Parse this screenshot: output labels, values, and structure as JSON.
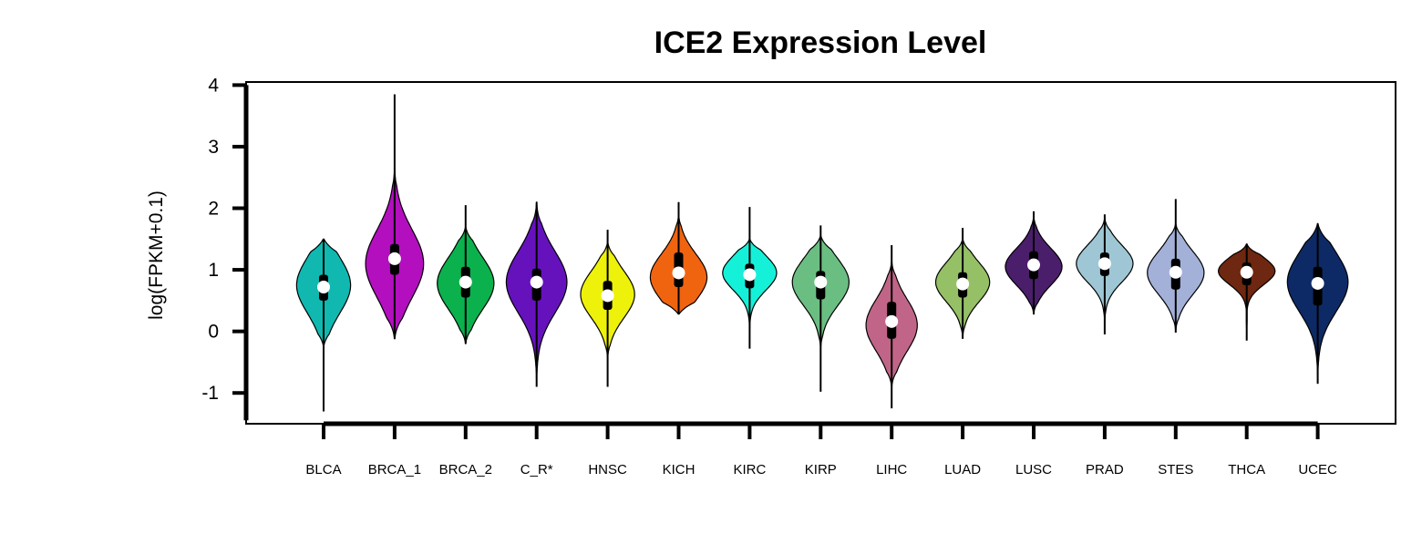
{
  "chart_data": {
    "type": "violin",
    "title": "ICE2 Expression Level",
    "xlabel": "",
    "ylabel": "log(FPKM+0.1)",
    "ylim": [
      -1.5,
      4.05
    ],
    "yticks": [
      -1,
      0,
      1,
      2,
      3,
      4
    ],
    "grid": false,
    "legend": "none",
    "categories": [
      "BLCA",
      "BRCA_1",
      "BRCA_2",
      "C_R*",
      "HNSC",
      "KICH",
      "KIRC",
      "KIRP",
      "LIHC",
      "LUAD",
      "LUSC",
      "PRAD",
      "STES",
      "THCA",
      "UCEC"
    ],
    "series": [
      {
        "category": "BLCA",
        "color": "#10b8b0",
        "min": -1.3,
        "max": 1.5,
        "q1": 0.5,
        "median": 0.72,
        "q3": 0.92,
        "lo": -0.25,
        "hi": 1.5,
        "peak": 0.75,
        "spread": 0.45,
        "width": 0.4
      },
      {
        "category": "BRCA_1",
        "color": "#b30fbf",
        "min": -0.12,
        "max": 3.85,
        "q1": 0.92,
        "median": 1.18,
        "q3": 1.42,
        "lo": -0.12,
        "hi": 2.7,
        "peak": 1.1,
        "spread": 0.55,
        "width": 0.43
      },
      {
        "category": "BRCA_2",
        "color": "#0bb14d",
        "min": -0.2,
        "max": 2.05,
        "q1": 0.55,
        "median": 0.8,
        "q3": 1.05,
        "lo": -0.2,
        "hi": 1.7,
        "peak": 0.78,
        "spread": 0.42,
        "width": 0.42
      },
      {
        "category": "C_R*",
        "color": "#6512bd",
        "min": -0.9,
        "max": 2.1,
        "q1": 0.5,
        "median": 0.8,
        "q3": 1.02,
        "lo": -0.9,
        "hi": 2.1,
        "peak": 0.8,
        "spread": 0.5,
        "width": 0.45
      },
      {
        "category": "HNSC",
        "color": "#eef10a",
        "min": -0.9,
        "max": 1.65,
        "q1": 0.35,
        "median": 0.58,
        "q3": 0.82,
        "lo": -0.45,
        "hi": 1.45,
        "peak": 0.6,
        "spread": 0.38,
        "width": 0.4
      },
      {
        "category": "KICH",
        "color": "#f06410",
        "min": 0.28,
        "max": 2.1,
        "q1": 0.72,
        "median": 0.95,
        "q3": 1.28,
        "lo": 0.28,
        "hi": 1.9,
        "peak": 0.88,
        "spread": 0.38,
        "width": 0.42
      },
      {
        "category": "KIRC",
        "color": "#15f1d8",
        "min": -0.28,
        "max": 2.02,
        "q1": 0.7,
        "median": 0.92,
        "q3": 1.1,
        "lo": 0.0,
        "hi": 1.5,
        "peak": 0.95,
        "spread": 0.28,
        "width": 0.4
      },
      {
        "category": "KIRP",
        "color": "#6bbe82",
        "min": -0.98,
        "max": 1.72,
        "q1": 0.52,
        "median": 0.8,
        "q3": 0.98,
        "lo": -0.3,
        "hi": 1.55,
        "peak": 0.8,
        "spread": 0.38,
        "width": 0.42
      },
      {
        "category": "LIHC",
        "color": "#c06587",
        "min": -1.25,
        "max": 1.4,
        "q1": -0.12,
        "median": 0.16,
        "q3": 0.48,
        "lo": -0.9,
        "hi": 1.15,
        "peak": 0.1,
        "spread": 0.42,
        "width": 0.38
      },
      {
        "category": "LUAD",
        "color": "#95c066",
        "min": -0.12,
        "max": 1.68,
        "q1": 0.55,
        "median": 0.77,
        "q3": 0.96,
        "lo": -0.12,
        "hi": 1.5,
        "peak": 0.8,
        "spread": 0.32,
        "width": 0.4
      },
      {
        "category": "LUSC",
        "color": "#4a1e6a",
        "min": 0.28,
        "max": 1.95,
        "q1": 0.85,
        "median": 1.08,
        "q3": 1.3,
        "lo": 0.28,
        "hi": 1.9,
        "peak": 1.05,
        "spread": 0.3,
        "width": 0.42
      },
      {
        "category": "PRAD",
        "color": "#9fc6d4",
        "min": -0.05,
        "max": 1.9,
        "q1": 0.9,
        "median": 1.1,
        "q3": 1.28,
        "lo": 0.1,
        "hi": 1.85,
        "peak": 1.1,
        "spread": 0.3,
        "width": 0.42
      },
      {
        "category": "STES",
        "color": "#a3b1d8",
        "min": -0.02,
        "max": 2.15,
        "q1": 0.68,
        "median": 0.96,
        "q3": 1.18,
        "lo": 0.0,
        "hi": 1.75,
        "peak": 0.95,
        "spread": 0.35,
        "width": 0.42
      },
      {
        "category": "THCA",
        "color": "#6e2710",
        "min": -0.15,
        "max": 1.42,
        "q1": 0.75,
        "median": 0.96,
        "q3": 1.12,
        "lo": 0.0,
        "hi": 1.42,
        "peak": 0.98,
        "spread": 0.22,
        "width": 0.42
      },
      {
        "category": "UCEC",
        "color": "#0d2a66",
        "min": -0.85,
        "max": 1.75,
        "q1": 0.42,
        "median": 0.78,
        "q3": 1.05,
        "lo": -0.85,
        "hi": 1.75,
        "peak": 0.8,
        "spread": 0.48,
        "width": 0.45
      }
    ]
  }
}
